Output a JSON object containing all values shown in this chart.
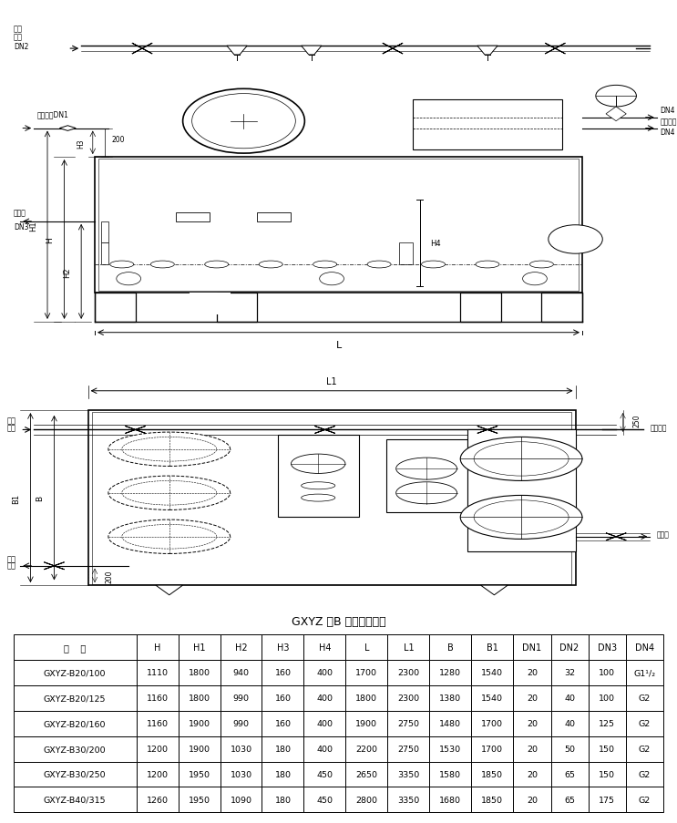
{
  "title": "GXYZ 型B 系列外形尺寸",
  "table_headers": [
    "型    号",
    "H",
    "H1",
    "H2",
    "H3",
    "H4",
    "L",
    "L1",
    "B",
    "B1",
    "DN1",
    "DN2",
    "DN3",
    "DN4"
  ],
  "table_data": [
    [
      "GXYZ-B20/100",
      "1110",
      "1800",
      "940",
      "160",
      "400",
      "1700",
      "2300",
      "1280",
      "1540",
      "20",
      "32",
      "100",
      "G1¹/₂"
    ],
    [
      "GXYZ-B20/125",
      "1160",
      "1800",
      "990",
      "160",
      "400",
      "1800",
      "2300",
      "1380",
      "1540",
      "20",
      "40",
      "100",
      "G2"
    ],
    [
      "GXYZ-B20/160",
      "1160",
      "1900",
      "990",
      "160",
      "400",
      "1900",
      "2750",
      "1480",
      "1700",
      "20",
      "40",
      "125",
      "G2"
    ],
    [
      "GXYZ-B30/200",
      "1200",
      "1900",
      "1030",
      "180",
      "400",
      "2200",
      "2750",
      "1530",
      "1700",
      "20",
      "50",
      "150",
      "G2"
    ],
    [
      "GXYZ-B30/250",
      "1200",
      "1950",
      "1030",
      "180",
      "450",
      "2650",
      "3350",
      "1580",
      "1850",
      "20",
      "65",
      "150",
      "G2"
    ],
    [
      "GXYZ-B40/315",
      "1260",
      "1950",
      "1090",
      "180",
      "450",
      "2800",
      "3350",
      "1680",
      "1850",
      "20",
      "65",
      "175",
      "G2"
    ]
  ],
  "col_widths": [
    1.7,
    0.58,
    0.58,
    0.58,
    0.58,
    0.58,
    0.58,
    0.58,
    0.58,
    0.58,
    0.52,
    0.52,
    0.52,
    0.52
  ],
  "bg_color": "#ffffff",
  "lc": "#000000"
}
